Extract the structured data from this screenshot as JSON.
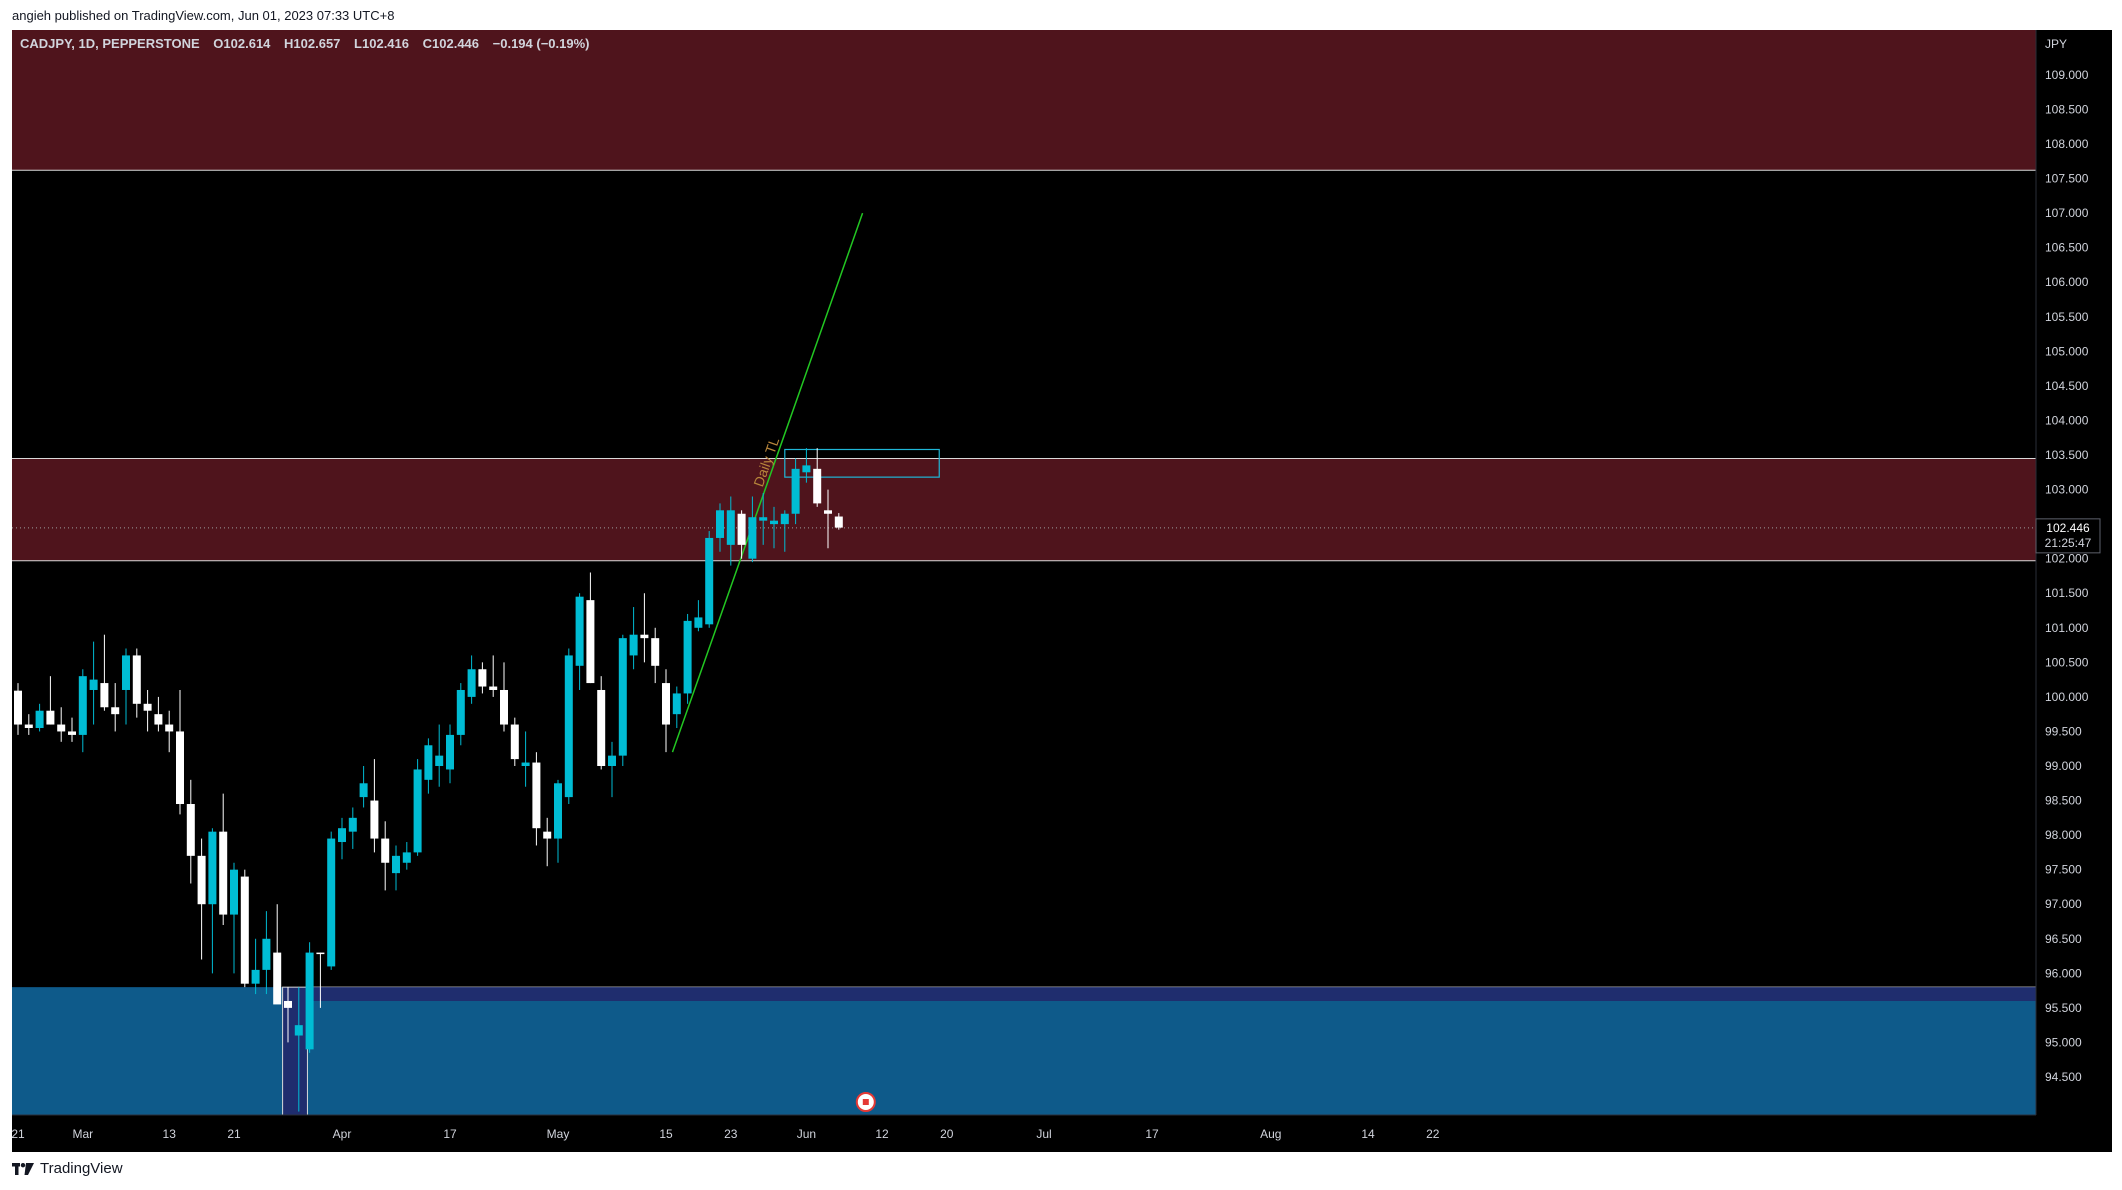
{
  "publisher": {
    "text": "angieh published on TradingView.com, Jun 01, 2023 07:33 UTC+8"
  },
  "footer": {
    "brand": "TradingView",
    "logo_icon": "tradingview-logo-icon"
  },
  "chart_data": {
    "type": "candlestick",
    "symbol_info": "CADJPY, 1D, PEPPERSTONE",
    "ohlc_readout": {
      "O_label": "O",
      "O": "102.614",
      "H_label": "H",
      "H": "102.657",
      "L_label": "L",
      "L": "102.416",
      "C_label": "C",
      "C": "102.446",
      "change": "−0.194 (−0.19%)"
    },
    "currency_label": "JPY",
    "last_price": "102.446",
    "countdown": "21:25:47",
    "annotation_text": "Daily TL",
    "ylim": [
      93.95,
      109.65
    ],
    "y_ticks": [
      "109.000",
      "108.500",
      "108.000",
      "107.500",
      "107.000",
      "106.500",
      "106.000",
      "105.500",
      "105.000",
      "104.500",
      "104.000",
      "103.500",
      "103.000",
      "102.500",
      "102.000",
      "101.500",
      "101.000",
      "100.500",
      "100.000",
      "99.500",
      "99.000",
      "98.500",
      "98.000",
      "97.500",
      "97.000",
      "96.500",
      "96.000",
      "95.500",
      "95.000",
      "94.500"
    ],
    "x_ticks": [
      {
        "label": "21",
        "t": 0
      },
      {
        "label": "Mar",
        "t": 6
      },
      {
        "label": "13",
        "t": 14
      },
      {
        "label": "21",
        "t": 20
      },
      {
        "label": "Apr",
        "t": 30
      },
      {
        "label": "17",
        "t": 40
      },
      {
        "label": "May",
        "t": 50
      },
      {
        "label": "15",
        "t": 60
      },
      {
        "label": "23",
        "t": 66
      },
      {
        "label": "Jun",
        "t": 73
      },
      {
        "label": "12",
        "t": 80
      },
      {
        "label": "20",
        "t": 86
      },
      {
        "label": "Jul",
        "t": 95
      },
      {
        "label": "17",
        "t": 105
      },
      {
        "label": "Aug",
        "t": 116
      },
      {
        "label": "14",
        "t": 125
      },
      {
        "label": "22",
        "t": 131
      }
    ],
    "colors": {
      "up": "#00bcd4",
      "down": "#ffffff",
      "supply_zone": "#4f141c",
      "demand_zone": "#0e5a8a",
      "demand_edge": "#1f2d6e",
      "trendline": "#22c722",
      "order_block_border": "#1fb6d6",
      "background": "#000000",
      "axis_text": "#d1d4dc"
    },
    "zones": [
      {
        "name": "upper-supply",
        "from": 107.62,
        "to": 109.65
      },
      {
        "name": "mid-supply",
        "from": 101.97,
        "to": 103.45
      },
      {
        "name": "demand",
        "from": 93.95,
        "to": 95.8
      }
    ],
    "trendline": {
      "t1": 60.6,
      "p1": 99.2,
      "t2": 78.2,
      "p2": 107.0
    },
    "order_block": {
      "t1": 71.0,
      "t2": 85.3,
      "top": 103.58,
      "bottom": 103.18
    },
    "candles": [
      {
        "t": 0,
        "o": 100.09,
        "h": 100.2,
        "l": 99.45,
        "c": 99.6
      },
      {
        "t": 1,
        "o": 99.6,
        "h": 99.75,
        "l": 99.45,
        "c": 99.55
      },
      {
        "t": 2,
        "o": 99.55,
        "h": 99.9,
        "l": 99.5,
        "c": 99.8
      },
      {
        "t": 3,
        "o": 99.8,
        "h": 100.3,
        "l": 99.6,
        "c": 99.6
      },
      {
        "t": 4,
        "o": 99.6,
        "h": 99.85,
        "l": 99.35,
        "c": 99.5
      },
      {
        "t": 5,
        "o": 99.5,
        "h": 99.7,
        "l": 99.35,
        "c": 99.45
      },
      {
        "t": 6,
        "o": 99.45,
        "h": 100.4,
        "l": 99.2,
        "c": 100.3
      },
      {
        "t": 7,
        "o": 100.1,
        "h": 100.8,
        "l": 99.6,
        "c": 100.25
      },
      {
        "t": 8,
        "o": 100.2,
        "h": 100.9,
        "l": 99.8,
        "c": 99.85
      },
      {
        "t": 9,
        "o": 99.85,
        "h": 100.2,
        "l": 99.5,
        "c": 99.75
      },
      {
        "t": 10,
        "o": 100.1,
        "h": 100.7,
        "l": 99.6,
        "c": 100.6
      },
      {
        "t": 11,
        "o": 100.6,
        "h": 100.7,
        "l": 99.7,
        "c": 99.9
      },
      {
        "t": 12,
        "o": 99.9,
        "h": 100.1,
        "l": 99.5,
        "c": 99.8
      },
      {
        "t": 13,
        "o": 99.75,
        "h": 100.0,
        "l": 99.5,
        "c": 99.6
      },
      {
        "t": 14,
        "o": 99.6,
        "h": 99.8,
        "l": 99.2,
        "c": 99.5
      },
      {
        "t": 15,
        "o": 99.5,
        "h": 100.1,
        "l": 98.3,
        "c": 98.45
      },
      {
        "t": 16,
        "o": 98.45,
        "h": 98.8,
        "l": 97.3,
        "c": 97.7
      },
      {
        "t": 17,
        "o": 97.7,
        "h": 97.95,
        "l": 96.2,
        "c": 97.0
      },
      {
        "t": 18,
        "o": 97.0,
        "h": 98.1,
        "l": 96.0,
        "c": 98.05
      },
      {
        "t": 19,
        "o": 98.05,
        "h": 98.6,
        "l": 96.7,
        "c": 96.85
      },
      {
        "t": 20,
        "o": 96.85,
        "h": 97.6,
        "l": 96.0,
        "c": 97.5
      },
      {
        "t": 21,
        "o": 97.4,
        "h": 97.5,
        "l": 95.8,
        "c": 95.85
      },
      {
        "t": 22,
        "o": 95.85,
        "h": 96.5,
        "l": 95.7,
        "c": 96.05
      },
      {
        "t": 23,
        "o": 96.05,
        "h": 96.9,
        "l": 95.7,
        "c": 96.5
      },
      {
        "t": 24,
        "o": 96.3,
        "h": 97.0,
        "l": 95.6,
        "c": 95.55
      },
      {
        "t": 25,
        "o": 95.6,
        "h": 95.8,
        "l": 95.0,
        "c": 95.5
      },
      {
        "t": 26,
        "o": 95.1,
        "h": 95.8,
        "l": 94.0,
        "c": 95.25
      },
      {
        "t": 27,
        "o": 94.9,
        "h": 96.45,
        "l": 94.85,
        "c": 96.3
      },
      {
        "t": 28,
        "o": 96.3,
        "h": 96.3,
        "l": 95.5,
        "c": 96.28
      },
      {
        "t": 29,
        "o": 96.1,
        "h": 98.05,
        "l": 96.05,
        "c": 97.95
      },
      {
        "t": 30,
        "o": 97.9,
        "h": 98.25,
        "l": 97.65,
        "c": 98.1
      },
      {
        "t": 31,
        "o": 98.05,
        "h": 98.4,
        "l": 97.8,
        "c": 98.25
      },
      {
        "t": 32,
        "o": 98.55,
        "h": 99.0,
        "l": 98.4,
        "c": 98.75
      },
      {
        "t": 33,
        "o": 98.5,
        "h": 99.1,
        "l": 97.75,
        "c": 97.95
      },
      {
        "t": 34,
        "o": 97.95,
        "h": 98.2,
        "l": 97.2,
        "c": 97.6
      },
      {
        "t": 35,
        "o": 97.45,
        "h": 97.85,
        "l": 97.2,
        "c": 97.7
      },
      {
        "t": 36,
        "o": 97.6,
        "h": 97.9,
        "l": 97.5,
        "c": 97.75
      },
      {
        "t": 37,
        "o": 97.75,
        "h": 99.1,
        "l": 97.7,
        "c": 98.95
      },
      {
        "t": 38,
        "o": 98.8,
        "h": 99.4,
        "l": 98.6,
        "c": 99.3
      },
      {
        "t": 39,
        "o": 99.0,
        "h": 99.6,
        "l": 98.7,
        "c": 99.15
      },
      {
        "t": 40,
        "o": 98.95,
        "h": 99.6,
        "l": 98.75,
        "c": 99.45
      },
      {
        "t": 41,
        "o": 99.45,
        "h": 100.2,
        "l": 99.3,
        "c": 100.1
      },
      {
        "t": 42,
        "o": 100.0,
        "h": 100.6,
        "l": 99.9,
        "c": 100.4
      },
      {
        "t": 43,
        "o": 100.4,
        "h": 100.5,
        "l": 100.05,
        "c": 100.15
      },
      {
        "t": 44,
        "o": 100.15,
        "h": 100.6,
        "l": 100.0,
        "c": 100.1
      },
      {
        "t": 45,
        "o": 100.1,
        "h": 100.5,
        "l": 99.5,
        "c": 99.6
      },
      {
        "t": 46,
        "o": 99.6,
        "h": 99.7,
        "l": 99.0,
        "c": 99.1
      },
      {
        "t": 47,
        "o": 99.0,
        "h": 99.5,
        "l": 98.7,
        "c": 99.05
      },
      {
        "t": 48,
        "o": 99.05,
        "h": 99.2,
        "l": 97.85,
        "c": 98.1
      },
      {
        "t": 49,
        "o": 98.05,
        "h": 98.25,
        "l": 97.55,
        "c": 97.95
      },
      {
        "t": 50,
        "o": 97.95,
        "h": 98.8,
        "l": 97.6,
        "c": 98.75
      },
      {
        "t": 51,
        "o": 98.55,
        "h": 100.7,
        "l": 98.45,
        "c": 100.6
      },
      {
        "t": 52,
        "o": 100.45,
        "h": 101.5,
        "l": 100.1,
        "c": 101.45
      },
      {
        "t": 53,
        "o": 101.4,
        "h": 101.8,
        "l": 100.2,
        "c": 100.2
      },
      {
        "t": 54,
        "o": 100.1,
        "h": 100.3,
        "l": 98.95,
        "c": 99.0
      },
      {
        "t": 55,
        "o": 99.0,
        "h": 99.35,
        "l": 98.55,
        "c": 99.15
      },
      {
        "t": 56,
        "o": 99.15,
        "h": 100.9,
        "l": 99.0,
        "c": 100.85
      },
      {
        "t": 57,
        "o": 100.6,
        "h": 101.3,
        "l": 100.4,
        "c": 100.9
      },
      {
        "t": 58,
        "o": 100.9,
        "h": 101.5,
        "l": 100.5,
        "c": 100.85
      },
      {
        "t": 59,
        "o": 100.85,
        "h": 101.0,
        "l": 100.2,
        "c": 100.45
      },
      {
        "t": 60,
        "o": 100.2,
        "h": 100.4,
        "l": 99.2,
        "c": 99.6
      },
      {
        "t": 61,
        "o": 99.75,
        "h": 100.15,
        "l": 99.55,
        "c": 100.05
      },
      {
        "t": 62,
        "o": 100.05,
        "h": 101.2,
        "l": 99.9,
        "c": 101.1
      },
      {
        "t": 63,
        "o": 101.0,
        "h": 101.4,
        "l": 100.95,
        "c": 101.15
      },
      {
        "t": 64,
        "o": 101.05,
        "h": 102.4,
        "l": 101.0,
        "c": 102.3
      },
      {
        "t": 65,
        "o": 102.3,
        "h": 102.8,
        "l": 102.1,
        "c": 102.7
      },
      {
        "t": 66,
        "o": 102.2,
        "h": 102.9,
        "l": 101.9,
        "c": 102.7
      },
      {
        "t": 67,
        "o": 102.65,
        "h": 102.7,
        "l": 102.0,
        "c": 102.2
      },
      {
        "t": 68,
        "o": 102.0,
        "h": 102.9,
        "l": 101.95,
        "c": 102.6
      },
      {
        "t": 69,
        "o": 102.55,
        "h": 102.95,
        "l": 102.2,
        "c": 102.6
      },
      {
        "t": 70,
        "o": 102.5,
        "h": 102.75,
        "l": 102.15,
        "c": 102.55
      },
      {
        "t": 71,
        "o": 102.5,
        "h": 102.7,
        "l": 102.1,
        "c": 102.65
      },
      {
        "t": 72,
        "o": 102.65,
        "h": 103.45,
        "l": 102.5,
        "c": 103.3
      },
      {
        "t": 73,
        "o": 103.25,
        "h": 103.6,
        "l": 103.1,
        "c": 103.35
      },
      {
        "t": 74,
        "o": 103.3,
        "h": 103.6,
        "l": 102.75,
        "c": 102.8
      },
      {
        "t": 75,
        "o": 102.7,
        "h": 103.0,
        "l": 102.15,
        "c": 102.65
      },
      {
        "t": 76,
        "o": 102.61,
        "h": 102.66,
        "l": 102.42,
        "c": 102.45
      }
    ]
  }
}
